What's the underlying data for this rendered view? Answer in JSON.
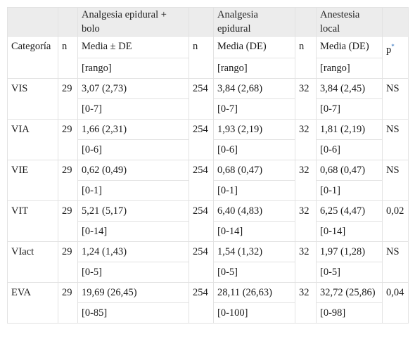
{
  "header": {
    "groups": [
      "Analgesia epidural + bolo",
      "Analgesia epidural",
      "Anestesia local"
    ],
    "col_categoria": "Categoría",
    "col_n": "n",
    "col_media_de_1": "Media ± DE",
    "col_media_de_2": "Media (DE)",
    "col_media_de_3": "Media (DE)",
    "col_p": "p",
    "col_p_sup": "*",
    "rango": "[rango]"
  },
  "rows": [
    {
      "cat": "VIS",
      "n1": "29",
      "m1": "3,07 (2,73)",
      "r1": "[0-7]",
      "n2": "254",
      "m2": "3,84 (2,68)",
      "r2": "[0-7]",
      "n3": "32",
      "m3": "3,84 (2,45)",
      "r3": "[0-7]",
      "p": "NS"
    },
    {
      "cat": "VIA",
      "n1": "29",
      "m1": "1,66 (2,31)",
      "r1": "[0-6]",
      "n2": "254",
      "m2": "1,93 (2,19)",
      "r2": "[0-6]",
      "n3": "32",
      "m3": "1,81 (2,19)",
      "r3": "[0-6]",
      "p": "NS"
    },
    {
      "cat": "VIE",
      "n1": "29",
      "m1": "0,62 (0,49)",
      "r1": "[0-1]",
      "n2": "254",
      "m2": "0,68 (0,47)",
      "r2": "[0-1]",
      "n3": "32",
      "m3": "0,68 (0,47)",
      "r3": "[0-1]",
      "p": "NS"
    },
    {
      "cat": "VIT",
      "n1": "29",
      "m1": "5,21 (5,17)",
      "r1": "[0-14]",
      "n2": "254",
      "m2": "6,40 (4,83)",
      "r2": "[0-14]",
      "n3": "32",
      "m3": "6,25 (4,47)",
      "r3": "[0-14]",
      "p": "0,02"
    },
    {
      "cat": "VIact",
      "n1": "29",
      "m1": "1,24 (1,43)",
      "r1": "[0-5]",
      "n2": "254",
      "m2": "1,54 (1,32)",
      "r2": "[0-5]",
      "n3": "32",
      "m3": "1,97 (1,28)",
      "r3": "[0-5]",
      "p": "NS"
    },
    {
      "cat": "EVA",
      "n1": "29",
      "m1": "19,69 (26,45)",
      "r1": "[0-85]",
      "n2": "254",
      "m2": "28,11 (26,63)",
      "r2": "[0-100]",
      "n3": "32",
      "m3": "32,72 (25,86)",
      "r3": "[0-98]",
      "p": "0,04"
    }
  ]
}
